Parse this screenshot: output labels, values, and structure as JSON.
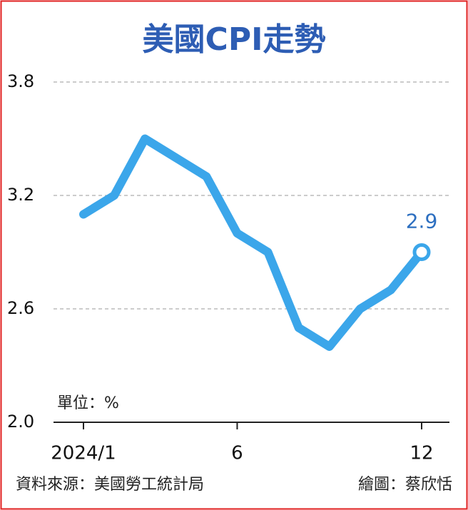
{
  "chart_data": {
    "type": "line",
    "title": "美國CPI走勢",
    "categories": [
      "2024/1",
      null,
      null,
      null,
      null,
      "6",
      null,
      null,
      null,
      null,
      null,
      "12"
    ],
    "values": [
      3.1,
      3.2,
      3.5,
      3.4,
      3.3,
      3.0,
      2.9,
      2.5,
      2.4,
      2.6,
      2.7,
      2.9
    ],
    "color": "#3ba6ea",
    "ylim": [
      2.0,
      3.8
    ],
    "yticks": [
      {
        "value": 2,
        "label": "2.0"
      },
      2.6,
      3.2,
      3.8
    ],
    "grid": true,
    "unit_label": "單位：%",
    "source": "資料來源：美國勞工統計局",
    "credit": "繪圖：蔡欣恬"
  }
}
